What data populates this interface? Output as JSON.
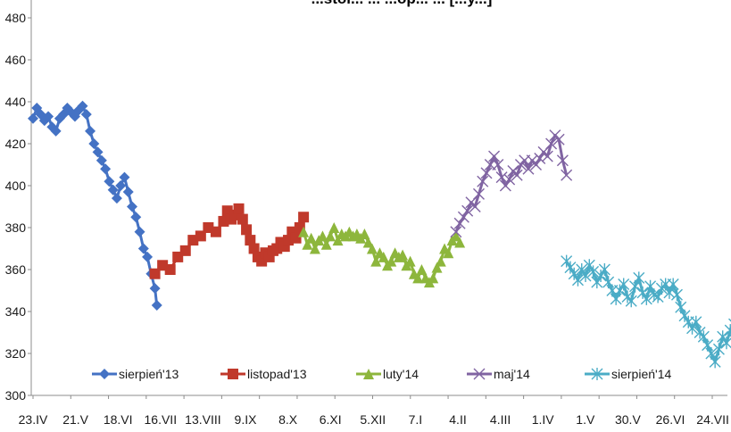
{
  "chart_data": {
    "type": "line",
    "title": "...stol... ... ...op... ... [...y...]",
    "ylim": [
      300,
      480
    ],
    "yticks": [
      300,
      320,
      340,
      360,
      380,
      400,
      420,
      440,
      460,
      480
    ],
    "ytick_labels": [
      "300",
      "320",
      "340",
      "360",
      "380",
      "400",
      "420",
      "440",
      "460",
      "480"
    ],
    "x_categories": [
      "23.IV",
      "21.V",
      "18.VI",
      "16.VII",
      "13.VIII",
      "9.IX",
      "8.X",
      "6.XI",
      "5.XII",
      "7.I",
      "4.II",
      "4.III",
      "1.IV",
      "1.V",
      "30.V",
      "26.VI",
      "24.VII"
    ],
    "grid": false,
    "legend_position": "bottom-inside",
    "series": [
      {
        "name": "sierpień'13",
        "color": "#4472C4",
        "marker": "diamond",
        "points": [
          [
            0.0,
            432
          ],
          [
            0.1,
            437
          ],
          [
            0.2,
            434
          ],
          [
            0.3,
            431
          ],
          [
            0.4,
            433
          ],
          [
            0.5,
            428
          ],
          [
            0.6,
            426
          ],
          [
            0.7,
            432
          ],
          [
            0.8,
            434
          ],
          [
            0.9,
            437
          ],
          [
            1.0,
            435
          ],
          [
            1.1,
            433
          ],
          [
            1.2,
            436
          ],
          [
            1.3,
            438
          ],
          [
            1.4,
            434
          ],
          [
            1.5,
            426
          ],
          [
            1.6,
            420
          ],
          [
            1.7,
            416
          ],
          [
            1.8,
            412
          ],
          [
            1.9,
            408
          ],
          [
            2.0,
            402
          ],
          [
            2.1,
            398
          ],
          [
            2.2,
            394
          ],
          [
            2.3,
            400
          ],
          [
            2.4,
            404
          ],
          [
            2.5,
            397
          ],
          [
            2.6,
            390
          ],
          [
            2.7,
            385
          ],
          [
            2.8,
            378
          ],
          [
            2.9,
            370
          ],
          [
            3.0,
            366
          ],
          [
            3.1,
            358
          ],
          [
            3.2,
            351
          ],
          [
            3.25,
            343
          ]
        ]
      },
      {
        "name": "listopad'13",
        "color": "#C0392B",
        "marker": "square",
        "points": [
          [
            3.2,
            358
          ],
          [
            3.4,
            362
          ],
          [
            3.6,
            360
          ],
          [
            3.8,
            366
          ],
          [
            4.0,
            369
          ],
          [
            4.2,
            374
          ],
          [
            4.4,
            376
          ],
          [
            4.6,
            380
          ],
          [
            4.8,
            378
          ],
          [
            5.0,
            383
          ],
          [
            5.1,
            388
          ],
          [
            5.2,
            384
          ],
          [
            5.3,
            386
          ],
          [
            5.4,
            389
          ],
          [
            5.5,
            384
          ],
          [
            5.6,
            379
          ],
          [
            5.7,
            374
          ],
          [
            5.8,
            370
          ],
          [
            5.9,
            366
          ],
          [
            6.0,
            364
          ],
          [
            6.1,
            368
          ],
          [
            6.2,
            366
          ],
          [
            6.3,
            369
          ],
          [
            6.4,
            370
          ],
          [
            6.5,
            373
          ],
          [
            6.6,
            371
          ],
          [
            6.7,
            374
          ],
          [
            6.8,
            378
          ],
          [
            6.9,
            375
          ],
          [
            7.0,
            380
          ],
          [
            7.1,
            385
          ]
        ]
      },
      {
        "name": "luty'14",
        "color": "#8DB63C",
        "marker": "triangle",
        "points": [
          [
            7.1,
            378
          ],
          [
            7.2,
            372
          ],
          [
            7.3,
            375
          ],
          [
            7.4,
            370
          ],
          [
            7.5,
            374
          ],
          [
            7.6,
            376
          ],
          [
            7.7,
            372
          ],
          [
            7.8,
            376
          ],
          [
            7.9,
            380
          ],
          [
            8.0,
            374
          ],
          [
            8.1,
            377
          ],
          [
            8.2,
            376
          ],
          [
            8.3,
            378
          ],
          [
            8.4,
            376
          ],
          [
            8.5,
            377
          ],
          [
            8.6,
            375
          ],
          [
            8.7,
            377
          ],
          [
            8.8,
            373
          ],
          [
            8.9,
            370
          ],
          [
            9.0,
            364
          ],
          [
            9.1,
            368
          ],
          [
            9.2,
            366
          ],
          [
            9.3,
            362
          ],
          [
            9.4,
            364
          ],
          [
            9.5,
            368
          ],
          [
            9.6,
            366
          ],
          [
            9.7,
            367
          ],
          [
            9.8,
            362
          ],
          [
            9.9,
            364
          ],
          [
            10.0,
            358
          ],
          [
            10.1,
            356
          ],
          [
            10.2,
            360
          ],
          [
            10.3,
            356
          ],
          [
            10.4,
            354
          ],
          [
            10.5,
            356
          ],
          [
            10.6,
            361
          ],
          [
            10.7,
            364
          ],
          [
            10.8,
            370
          ],
          [
            10.9,
            368
          ],
          [
            11.0,
            374
          ],
          [
            11.1,
            376
          ],
          [
            11.2,
            373
          ]
        ]
      },
      {
        "name": "maj'14",
        "color": "#8064A2",
        "marker": "x",
        "points": [
          [
            11.1,
            378
          ],
          [
            11.2,
            382
          ],
          [
            11.3,
            385
          ],
          [
            11.4,
            388
          ],
          [
            11.5,
            392
          ],
          [
            11.6,
            390
          ],
          [
            11.7,
            396
          ],
          [
            11.8,
            402
          ],
          [
            11.9,
            406
          ],
          [
            12.0,
            410
          ],
          [
            12.1,
            414
          ],
          [
            12.2,
            410
          ],
          [
            12.3,
            404
          ],
          [
            12.4,
            400
          ],
          [
            12.5,
            403
          ],
          [
            12.6,
            407
          ],
          [
            12.7,
            405
          ],
          [
            12.8,
            410
          ],
          [
            12.9,
            412
          ],
          [
            13.0,
            408
          ],
          [
            13.1,
            412
          ],
          [
            13.2,
            410
          ],
          [
            13.3,
            413
          ],
          [
            13.4,
            416
          ],
          [
            13.5,
            414
          ],
          [
            13.6,
            420
          ],
          [
            13.7,
            424
          ],
          [
            13.8,
            422
          ],
          [
            13.9,
            412
          ],
          [
            14.0,
            405
          ]
        ]
      },
      {
        "name": "sierpień'14",
        "color": "#4BACC6",
        "marker": "star",
        "points": [
          [
            14.0,
            364
          ],
          [
            14.1,
            361
          ],
          [
            14.2,
            358
          ],
          [
            14.3,
            355
          ],
          [
            14.4,
            360
          ],
          [
            14.5,
            357
          ],
          [
            14.6,
            362
          ],
          [
            14.7,
            359
          ],
          [
            14.8,
            354
          ],
          [
            14.9,
            357
          ],
          [
            15.0,
            360
          ],
          [
            15.1,
            354
          ],
          [
            15.2,
            350
          ],
          [
            15.3,
            346
          ],
          [
            15.4,
            350
          ],
          [
            15.5,
            353
          ],
          [
            15.6,
            347
          ],
          [
            15.7,
            345
          ],
          [
            15.8,
            352
          ],
          [
            15.9,
            356
          ],
          [
            16.0,
            349
          ],
          [
            16.1,
            346
          ],
          [
            16.2,
            352
          ],
          [
            16.3,
            348
          ],
          [
            16.4,
            347
          ],
          [
            16.5,
            351
          ],
          [
            16.6,
            353
          ],
          [
            16.7,
            349
          ],
          [
            16.8,
            353
          ],
          [
            16.9,
            348
          ],
          [
            17.0,
            342
          ],
          [
            17.1,
            338
          ],
          [
            17.2,
            335
          ],
          [
            17.3,
            332
          ],
          [
            17.4,
            335
          ],
          [
            17.5,
            330
          ],
          [
            17.6,
            328
          ],
          [
            17.7,
            324
          ],
          [
            17.8,
            320
          ],
          [
            17.9,
            316
          ],
          [
            18.0,
            322
          ],
          [
            18.1,
            328
          ],
          [
            18.2,
            325
          ],
          [
            18.3,
            331
          ],
          [
            18.4,
            334
          ],
          [
            18.5,
            331
          ]
        ]
      }
    ]
  }
}
